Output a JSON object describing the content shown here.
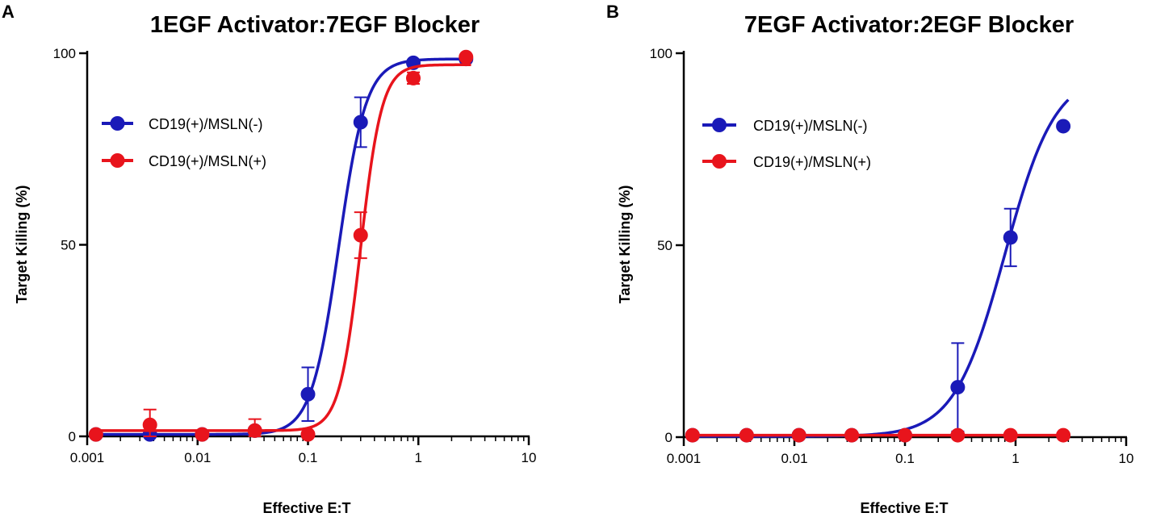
{
  "chart_data": [
    {
      "type": "scatter",
      "panel_label": "A",
      "title": "1EGF Activator:7EGF Blocker",
      "xlabel": "Effective E:T",
      "ylabel": "Target Killing (%)",
      "x_scale": "log",
      "xlim": [
        0.001,
        10
      ],
      "ylim": [
        0,
        100
      ],
      "x_ticks": [
        0.001,
        0.01,
        0.1,
        1,
        10
      ],
      "x_tick_labels": [
        "0.001",
        "0.01",
        "0.1",
        "1",
        "10"
      ],
      "y_ticks": [
        0,
        50,
        100
      ],
      "y_tick_labels": [
        "0",
        "50",
        "100"
      ],
      "legend_position": "upper-left",
      "series": [
        {
          "name": "CD19(+)/MSLN(-)",
          "color": "#1a1ab8",
          "x": [
            0.0012,
            0.0037,
            0.011,
            0.033,
            0.1,
            0.3,
            0.9,
            2.7
          ],
          "y": [
            0.5,
            0.5,
            0.5,
            1.5,
            11,
            82,
            97.5,
            98.5
          ],
          "err": [
            0,
            0,
            0,
            0,
            7,
            6.5,
            0,
            0
          ],
          "fit": {
            "bottom": 0.5,
            "top": 98.5,
            "ec50": 0.19,
            "hill": 3.5
          }
        },
        {
          "name": "CD19(+)/MSLN(+)",
          "color": "#e8141c",
          "x": [
            0.0012,
            0.0037,
            0.011,
            0.033,
            0.1,
            0.3,
            0.9,
            2.7
          ],
          "y": [
            0.5,
            3,
            0.5,
            1.5,
            0.5,
            52.5,
            93.5,
            99
          ],
          "err": [
            0,
            4,
            0,
            3,
            0,
            6,
            1.5,
            0
          ],
          "fit": {
            "bottom": 1.5,
            "top": 97,
            "ec50": 0.3,
            "hill": 4.5
          }
        }
      ]
    },
    {
      "type": "scatter",
      "panel_label": "B",
      "title": "7EGF Activator:2EGF Blocker",
      "xlabel": "Effective E:T",
      "ylabel": "Target Killing (%)",
      "x_scale": "log",
      "xlim": [
        0.001,
        10
      ],
      "ylim": [
        0,
        100
      ],
      "x_ticks": [
        0.001,
        0.01,
        0.1,
        1,
        10
      ],
      "x_tick_labels": [
        "0.001",
        "0.01",
        "0.1",
        "1",
        "10"
      ],
      "y_ticks": [
        0,
        50,
        100
      ],
      "y_tick_labels": [
        "0",
        "50",
        "100"
      ],
      "legend_position": "upper-left",
      "series": [
        {
          "name": "CD19(+)/MSLN(-)",
          "color": "#1a1ab8",
          "x": [
            0.0012,
            0.0037,
            0.011,
            0.033,
            0.1,
            0.3,
            0.9,
            2.7
          ],
          "y": [
            0.5,
            0.5,
            0.5,
            0.5,
            0.5,
            13,
            52,
            81
          ],
          "err": [
            0,
            0,
            0,
            0,
            0,
            11.5,
            7.5,
            0
          ],
          "fit": {
            "bottom": 0.2,
            "top": 95,
            "ec50": 0.8,
            "hill": 1.9
          }
        },
        {
          "name": "CD19(+)/MSLN(+)",
          "color": "#e8141c",
          "x": [
            0.0012,
            0.0037,
            0.011,
            0.033,
            0.1,
            0.3,
            0.9,
            2.7
          ],
          "y": [
            0.5,
            0.5,
            0.5,
            0.5,
            0.5,
            0.5,
            0.5,
            0.5
          ],
          "err": [
            0,
            0,
            0,
            0,
            0,
            0,
            0,
            0
          ],
          "fit": {
            "bottom": 0.5,
            "top": 0.5,
            "ec50": 1,
            "hill": 1
          }
        }
      ]
    }
  ]
}
